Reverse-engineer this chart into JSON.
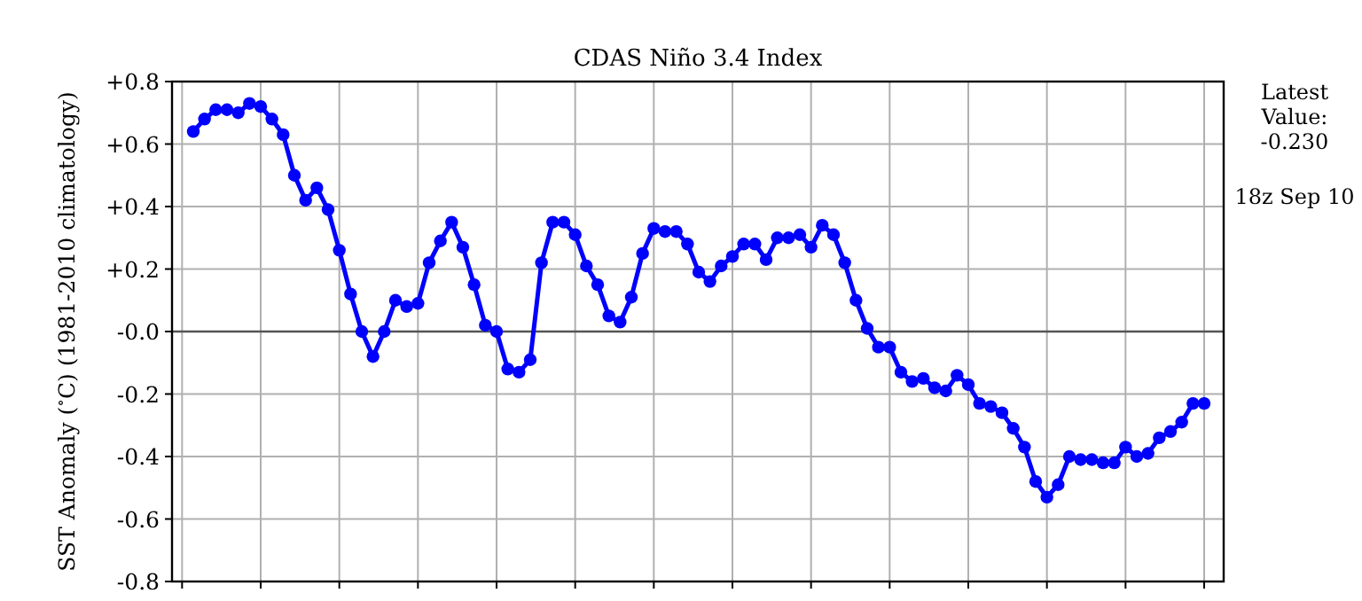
{
  "chart_data": {
    "type": "line",
    "title": "CDAS Niño 3.4 Index",
    "ylabel": "SST Anomaly ($^{∘}$C) (1981-2010 climatology)",
    "annotations": [
      "Latest\nValue:\n-0.230",
      "18z Sep 10"
    ],
    "categories": [
      null,
      null,
      null,
      null,
      null,
      null,
      null,
      null,
      null,
      null,
      null,
      null,
      null,
      null,
      null,
      null,
      null,
      null,
      null,
      null,
      null,
      null,
      null,
      null,
      null,
      null,
      null,
      null,
      null,
      null,
      null,
      null,
      null,
      null,
      null,
      null,
      null,
      null,
      null,
      null,
      null,
      null,
      null,
      null,
      null,
      null,
      null,
      null,
      null,
      null,
      null,
      null,
      null,
      null,
      null,
      null,
      null,
      null,
      null,
      null,
      null,
      null,
      null,
      null,
      null,
      null,
      null,
      null,
      null,
      null,
      null,
      null,
      null,
      null,
      null,
      null,
      null,
      null,
      null,
      null,
      null,
      null,
      null,
      null,
      null,
      null,
      null,
      null,
      null,
      null,
      null
    ],
    "series": [
      {
        "color": "#0000ff",
        "values": [
          0.64,
          0.68,
          0.71,
          0.71,
          0.7,
          0.73,
          0.72,
          0.68,
          0.63,
          0.5,
          0.42,
          0.46,
          0.39,
          0.26,
          0.12,
          0.0,
          -0.08,
          0.0,
          0.1,
          0.08,
          0.09,
          0.22,
          0.29,
          0.35,
          0.27,
          0.15,
          0.02,
          0.0,
          -0.12,
          -0.13,
          -0.09,
          0.22,
          0.35,
          0.35,
          0.31,
          0.21,
          0.15,
          0.05,
          0.03,
          0.11,
          0.25,
          0.33,
          0.32,
          0.32,
          0.28,
          0.19,
          0.16,
          0.21,
          0.24,
          0.28,
          0.28,
          0.23,
          0.3,
          0.3,
          0.31,
          0.27,
          0.34,
          0.31,
          0.22,
          0.1,
          0.01,
          -0.05,
          -0.05,
          -0.13,
          -0.16,
          -0.15,
          -0.18,
          -0.19,
          -0.14,
          -0.17,
          -0.23,
          -0.24,
          -0.26,
          -0.31,
          -0.37,
          -0.48,
          -0.53,
          -0.49,
          -0.4,
          -0.41,
          -0.41,
          -0.42,
          -0.42,
          -0.37,
          -0.4,
          -0.39,
          -0.34,
          -0.32,
          -0.29,
          -0.23,
          -0.23
        ]
      }
    ],
    "ylim": [
      -0.8,
      0.8
    ],
    "yticks": [
      {
        "value": 0.8,
        "label": "+0.8"
      },
      {
        "value": 0.6,
        "label": "+0.6"
      },
      {
        "value": 0.4,
        "label": "+0.4"
      },
      {
        "value": 0.2,
        "label": "+0.2"
      },
      {
        "value": 0,
        "label": "-0.0"
      },
      {
        "value": -0.2,
        "label": "-0.2"
      },
      {
        "value": -0.4,
        "label": "-0.4"
      },
      {
        "value": -0.6,
        "label": "-0.6"
      },
      {
        "value": -0.8,
        "label": "-0.8"
      }
    ],
    "tick_labels": "y",
    "grid": true,
    "marker": "circle",
    "line_style": "solid",
    "ref_lines": [
      {
        "axis": "y",
        "value": 0,
        "color": "#555555"
      }
    ]
  }
}
